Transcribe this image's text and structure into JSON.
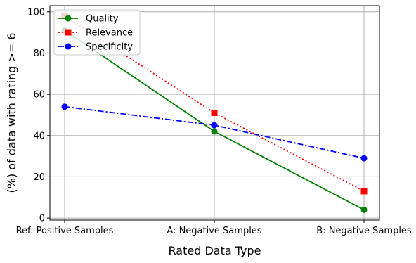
{
  "chart_data": {
    "type": "line",
    "title": "",
    "xlabel": "Rated Data Type",
    "ylabel": "(%) of data with rating >= 6",
    "categories": [
      "Ref: Positive Samples",
      "A: Negative Samples",
      "B: Negative Samples"
    ],
    "ylim": [
      -1,
      103
    ],
    "yticks": [
      0,
      20,
      40,
      60,
      80,
      100
    ],
    "grid": true,
    "legend_position": "top-left",
    "series": [
      {
        "name": "Quality",
        "values": [
          91,
          42,
          4
        ],
        "color": "#008000",
        "marker": "circle",
        "linestyle": "solid"
      },
      {
        "name": "Relevance",
        "values": [
          98,
          51,
          13
        ],
        "color": "#ff0000",
        "marker": "square",
        "linestyle": "dotted"
      },
      {
        "name": "Specificity",
        "values": [
          54,
          45,
          29
        ],
        "color": "#0000ff",
        "marker": "circle",
        "linestyle": "dashdot"
      }
    ]
  }
}
